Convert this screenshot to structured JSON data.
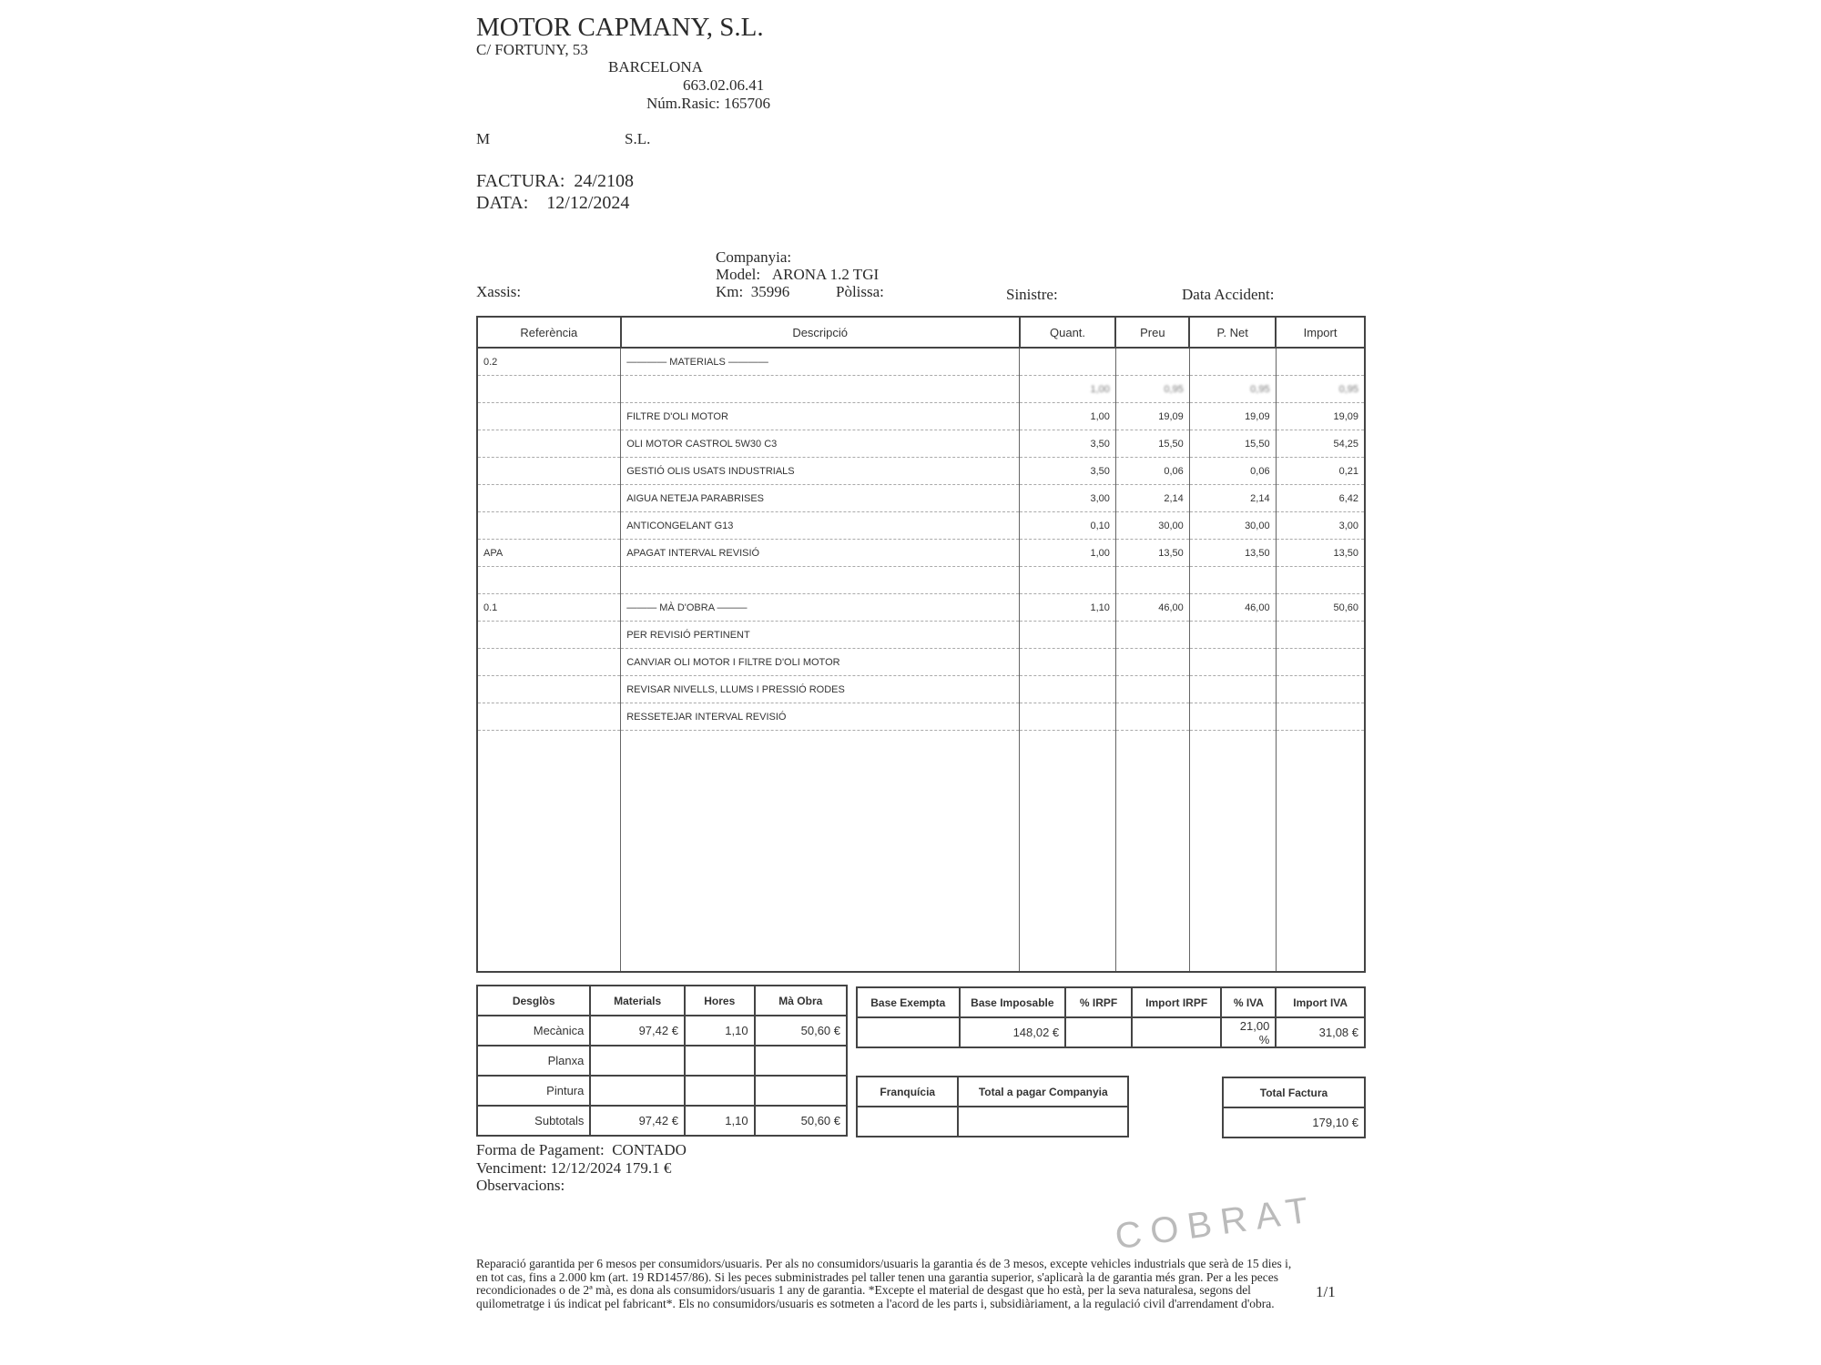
{
  "company": {
    "name": "MOTOR CAPMANY, S.L.",
    "address": "C/ FORTUNY, 53",
    "city": "BARCELONA",
    "phone": "663.02.06.41",
    "rasic": "Núm.Rasic: 165706",
    "client_fragment_start": "M",
    "client_fragment_end": "S.L."
  },
  "invoice": {
    "factura_label": "FACTURA:",
    "factura_number": "24/2108",
    "data_label": "DATA:",
    "date": "12/12/2024"
  },
  "vehicle": {
    "companyia_label": "Companyia:",
    "model_label": "Model:",
    "model": "ARONA 1.2 TGI",
    "km_label": "Km:",
    "km": "35996",
    "polissa_label": "Pòlissa:",
    "xassis_label": "Xassis:",
    "sinistre_label": "Sinistre:",
    "data_accident_label": "Data Accident:"
  },
  "items_table": {
    "headers": [
      "Referència",
      "Descripció",
      "Quant.",
      "Preu",
      "P. Net",
      "Import"
    ],
    "rows": [
      {
        "ref": "0.2",
        "desc": "———— MATERIALS ————",
        "qty": "",
        "price": "",
        "net": "",
        "import": ""
      },
      {
        "ref": "",
        "desc": "",
        "qty": "1,00",
        "price": "0,95",
        "net": "0,95",
        "import": "0,95",
        "blurred": true
      },
      {
        "ref": "",
        "desc": "FILTRE D'OLI MOTOR",
        "qty": "1,00",
        "price": "19,09",
        "net": "19,09",
        "import": "19,09"
      },
      {
        "ref": "",
        "desc": "OLI MOTOR CASTROL 5W30 C3",
        "qty": "3,50",
        "price": "15,50",
        "net": "15,50",
        "import": "54,25"
      },
      {
        "ref": "",
        "desc": "GESTIÓ OLIS USATS INDUSTRIALS",
        "qty": "3,50",
        "price": "0,06",
        "net": "0,06",
        "import": "0,21"
      },
      {
        "ref": "",
        "desc": "AIGUA NETEJA PARABRISES",
        "qty": "3,00",
        "price": "2,14",
        "net": "2,14",
        "import": "6,42"
      },
      {
        "ref": "",
        "desc": "ANTICONGELANT G13",
        "qty": "0,10",
        "price": "30,00",
        "net": "30,00",
        "import": "3,00"
      },
      {
        "ref": "APA",
        "desc": "APAGAT INTERVAL REVISIÓ",
        "qty": "1,00",
        "price": "13,50",
        "net": "13,50",
        "import": "13,50"
      },
      {
        "ref": "",
        "desc": "",
        "qty": "",
        "price": "",
        "net": "",
        "import": ""
      },
      {
        "ref": "0.1",
        "desc": "——— MÀ D'OBRA ———",
        "qty": "1,10",
        "price": "46,00",
        "net": "46,00",
        "import": "50,60"
      },
      {
        "ref": "",
        "desc": "PER REVISIÓ PERTINENT",
        "qty": "",
        "price": "",
        "net": "",
        "import": ""
      },
      {
        "ref": "",
        "desc": "CANVIAR OLI MOTOR I FILTRE D'OLI MOTOR",
        "qty": "",
        "price": "",
        "net": "",
        "import": ""
      },
      {
        "ref": "",
        "desc": "REVISAR NIVELLS, LLUMS I PRESSIÓ RODES",
        "qty": "",
        "price": "",
        "net": "",
        "import": ""
      },
      {
        "ref": "",
        "desc": "RESSETEJAR INTERVAL REVISIÓ",
        "qty": "",
        "price": "",
        "net": "",
        "import": ""
      }
    ]
  },
  "breakdown": {
    "headers": [
      "Desglòs",
      "Materials",
      "Hores",
      "Mà Obra"
    ],
    "rows": [
      [
        "Mecànica",
        "97,42 €",
        "1,10",
        "50,60 €"
      ],
      [
        "Planxa",
        "",
        "",
        ""
      ],
      [
        "Pintura",
        "",
        "",
        ""
      ],
      [
        "Subtotals",
        "97,42 €",
        "1,10",
        "50,60 €"
      ]
    ]
  },
  "taxes": {
    "headers": [
      "Base Exempta",
      "Base Imposable",
      "% IRPF",
      "Import IRPF",
      "% IVA",
      "Import IVA"
    ],
    "values": [
      "",
      "148,02 €",
      "",
      "",
      "21,00 %",
      "31,08 €"
    ]
  },
  "franchise": {
    "headers": [
      "Franquícia",
      "Total a pagar Companyia"
    ],
    "values": [
      "",
      ""
    ]
  },
  "total": {
    "label": "Total Factura",
    "value": "179,10 €"
  },
  "payment": {
    "forma_label": "Forma de Pagament:",
    "forma": "CONTADO",
    "venciment": "Venciment: 12/12/2024 179.1 €",
    "observacions_label": "Observacions:"
  },
  "stamp": "COBRAT",
  "footer": {
    "legal": "Reparació garantida per 6 mesos per consumidors/usuaris. Per als no consumidors/usuaris la garantia és de 3 mesos, excepte vehicles industrials que serà de 15 dies i, en tot cas, fins a 2.000 km (art. 19 RD1457/86). Si les peces subministrades pel taller tenen una garantia superior, s'aplicarà la de garantia més gran. Per a les peces recondicionades o de 2ª mà, es dona als consumidors/usuaris 1 any de garantia. *Excepte el material de desgast que ho està, per la seva naturalesa, segons del quilometratge i ús indicat pel fabricant*. Els no consumidors/usuaris es sotmeten a l'acord de les parts i, subsidiàriament, a la regulació civil d'arrendament d'obra.",
    "page": "1/1"
  }
}
